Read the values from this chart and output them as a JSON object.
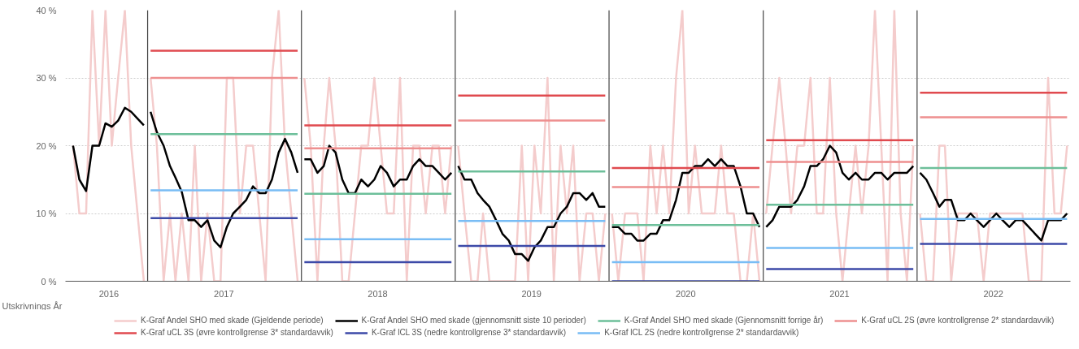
{
  "chart_data": {
    "type": "line",
    "xlabel": "Utskrivnings År",
    "xlim": [
      "2016-06-20",
      "2022-12-31"
    ],
    "ylim": [
      0,
      40
    ],
    "xticks": [
      {
        "value": "2016-10-01",
        "label": "2016"
      },
      {
        "value": "2017-07-01",
        "label": "2017"
      },
      {
        "value": "2018-07-01",
        "label": "2018"
      },
      {
        "value": "2019-07-01",
        "label": "2019"
      },
      {
        "value": "2020-07-01",
        "label": "2020"
      },
      {
        "value": "2021-07-01",
        "label": "2021"
      },
      {
        "value": "2022-07-01",
        "label": "2022"
      }
    ],
    "yticks": [
      {
        "value": 0,
        "label": "0 %"
      },
      {
        "value": 10,
        "label": "10 %"
      },
      {
        "value": 20,
        "label": "20 %"
      },
      {
        "value": 30,
        "label": "30 %"
      },
      {
        "value": 40,
        "label": "40 %"
      }
    ],
    "grid": "y",
    "legend": "bottom",
    "line_style": "solid",
    "x": [
      "2016-07-08",
      "2016-07-23",
      "2016-08-08",
      "2016-08-23",
      "2016-09-08",
      "2016-09-23",
      "2016-10-08",
      "2016-10-23",
      "2016-11-08",
      "2016-11-23",
      "2016-12-08",
      "2016-12-23",
      "2017-01-01",
      "2017-01-08",
      "2017-01-23",
      "2017-02-08",
      "2017-02-23",
      "2017-03-08",
      "2017-03-23",
      "2017-04-08",
      "2017-04-23",
      "2017-05-08",
      "2017-05-23",
      "2017-06-08",
      "2017-06-23",
      "2017-07-08",
      "2017-07-23",
      "2017-08-08",
      "2017-08-23",
      "2017-09-08",
      "2017-09-23",
      "2017-10-08",
      "2017-10-23",
      "2017-11-08",
      "2017-11-23",
      "2017-12-08",
      "2017-12-23",
      "2018-01-01",
      "2018-01-08",
      "2018-01-23",
      "2018-02-08",
      "2018-02-23",
      "2018-03-08",
      "2018-03-23",
      "2018-04-08",
      "2018-04-23",
      "2018-05-08",
      "2018-05-23",
      "2018-06-08",
      "2018-06-23",
      "2018-07-08",
      "2018-07-23",
      "2018-08-08",
      "2018-08-23",
      "2018-09-08",
      "2018-09-23",
      "2018-10-08",
      "2018-10-23",
      "2018-11-08",
      "2018-11-23",
      "2018-12-08",
      "2018-12-23",
      "2019-01-01",
      "2019-01-08",
      "2019-01-23",
      "2019-02-08",
      "2019-02-23",
      "2019-03-08",
      "2019-03-23",
      "2019-04-08",
      "2019-04-23",
      "2019-05-08",
      "2019-05-23",
      "2019-06-08",
      "2019-06-23",
      "2019-07-08",
      "2019-07-23",
      "2019-08-08",
      "2019-08-23",
      "2019-09-08",
      "2019-09-23",
      "2019-10-08",
      "2019-10-23",
      "2019-11-08",
      "2019-11-23",
      "2019-12-08",
      "2019-12-23",
      "2020-01-01",
      "2020-01-08",
      "2020-01-23",
      "2020-02-08",
      "2020-02-23",
      "2020-03-08",
      "2020-03-23",
      "2020-04-08",
      "2020-04-23",
      "2020-05-08",
      "2020-05-23",
      "2020-06-08",
      "2020-06-23",
      "2020-07-08",
      "2020-07-23",
      "2020-08-08",
      "2020-08-23",
      "2020-09-08",
      "2020-09-23",
      "2020-10-08",
      "2020-10-23",
      "2020-11-08",
      "2020-11-23",
      "2020-12-08",
      "2020-12-23",
      "2021-01-01",
      "2021-01-08",
      "2021-01-23",
      "2021-02-08",
      "2021-02-23",
      "2021-03-08",
      "2021-03-23",
      "2021-04-08",
      "2021-04-23",
      "2021-05-08",
      "2021-05-23",
      "2021-06-08",
      "2021-06-23",
      "2021-07-08",
      "2021-07-23",
      "2021-08-08",
      "2021-08-23",
      "2021-09-08",
      "2021-09-23",
      "2021-10-08",
      "2021-10-23",
      "2021-11-08",
      "2021-11-23",
      "2021-12-08",
      "2021-12-23",
      "2022-01-01",
      "2022-01-08",
      "2022-01-23",
      "2022-02-08",
      "2022-02-23",
      "2022-03-08",
      "2022-03-23",
      "2022-04-08",
      "2022-04-23",
      "2022-05-08",
      "2022-05-23",
      "2022-06-08",
      "2022-06-23",
      "2022-07-08",
      "2022-07-23",
      "2022-08-08",
      "2022-08-23",
      "2022-09-08",
      "2022-09-23",
      "2022-10-08",
      "2022-10-23",
      "2022-11-08",
      "2022-11-23",
      "2022-12-08",
      "2022-12-23"
    ],
    "series": [
      {
        "name": "K-Graf Andel SHO med skade (Gjeldende periode)",
        "color": "#f4cccc",
        "values": [
          20,
          10,
          10,
          40,
          20,
          40,
          20,
          30,
          40,
          20,
          10,
          0,
          null,
          30,
          20,
          0,
          10,
          0,
          10,
          0,
          20,
          0,
          10,
          0,
          0,
          30,
          30,
          10,
          20,
          20,
          10,
          0,
          30,
          40,
          20,
          10,
          0,
          null,
          30,
          20,
          0,
          20,
          30,
          20,
          0,
          0,
          10,
          20,
          20,
          30,
          20,
          10,
          10,
          30,
          0,
          20,
          20,
          10,
          20,
          20,
          10,
          20,
          null,
          20,
          10,
          0,
          0,
          10,
          0,
          0,
          0,
          0,
          0,
          20,
          0,
          20,
          10,
          30,
          0,
          20,
          10,
          20,
          0,
          10,
          10,
          0,
          10,
          null,
          10,
          0,
          10,
          10,
          10,
          0,
          20,
          10,
          20,
          10,
          30,
          40,
          10,
          20,
          10,
          10,
          10,
          20,
          10,
          10,
          0,
          0,
          10,
          0,
          null,
          10,
          20,
          30,
          20,
          10,
          20,
          20,
          30,
          10,
          10,
          30,
          10,
          0,
          10,
          20,
          10,
          20,
          40,
          20,
          0,
          40,
          10,
          0,
          20,
          null,
          10,
          0,
          0,
          20,
          20,
          0,
          10,
          10,
          10,
          10,
          0,
          10,
          10,
          10,
          10,
          10,
          10,
          0,
          0,
          0,
          30,
          10,
          10,
          20
        ]
      },
      {
        "name": "K-Graf Andel SHO med skade (gjennomsnitt siste 10 perioder)",
        "color": "#000000",
        "values": [
          20,
          15,
          13.3,
          20,
          20,
          23.3,
          22.8,
          23.7,
          25.6,
          25,
          24,
          23,
          null,
          25,
          22,
          20,
          17,
          15.3,
          13.2,
          9,
          9,
          8,
          9,
          6,
          5,
          8,
          10,
          11,
          12,
          14,
          13,
          13,
          15,
          19,
          21,
          19,
          16,
          null,
          18,
          18,
          16,
          17,
          20,
          19,
          15,
          13,
          13,
          15,
          14,
          15,
          17,
          16,
          14,
          15,
          15,
          17,
          18,
          17,
          17,
          16,
          15,
          16,
          null,
          17,
          15,
          15,
          13,
          12,
          11,
          9,
          7,
          6,
          4,
          4,
          3,
          5,
          6,
          8,
          8,
          10,
          11,
          13,
          13,
          12,
          13,
          11,
          11,
          null,
          8,
          8,
          7,
          7,
          6,
          6,
          7,
          7,
          9,
          9,
          12,
          16,
          16,
          17,
          17,
          18,
          17,
          18,
          17,
          17,
          14,
          10,
          10,
          8,
          null,
          8,
          9,
          11,
          11,
          11,
          12,
          14,
          17,
          17,
          18,
          20,
          19,
          16,
          15,
          16,
          15,
          15,
          16,
          16,
          15,
          16,
          16,
          16,
          17,
          null,
          16,
          15,
          13,
          11,
          12,
          12,
          9,
          9,
          10,
          9,
          8,
          9,
          10,
          9,
          8,
          9,
          9,
          8,
          7,
          6,
          9,
          9,
          9,
          10
        ]
      },
      {
        "name": "K-Graf Andel SHO med skade (Gjennomsnitt forrige år)",
        "color": "#6dbf9a",
        "x": [
          "2017-01-08",
          "2017-12-23",
          "2018-01-01",
          "2018-01-08",
          "2018-12-23",
          "2019-01-01",
          "2019-01-08",
          "2019-12-23",
          "2020-01-01",
          "2020-01-08",
          "2020-12-23",
          "2021-01-01",
          "2021-01-08",
          "2021-12-23",
          "2022-01-01",
          "2022-01-08",
          "2022-12-23"
        ],
        "values": [
          21.7,
          21.7,
          null,
          12.9,
          12.9,
          null,
          16.2,
          16.2,
          null,
          8.3,
          8.3,
          null,
          11.3,
          11.3,
          null,
          16.7,
          16.7
        ]
      },
      {
        "name": "K-Graf uCL 2S (øvre kontrollgrense 2* standardavvik)",
        "color": "#ee9090",
        "x": [
          "2017-01-08",
          "2017-12-23",
          "2018-01-01",
          "2018-01-08",
          "2018-12-23",
          "2019-01-01",
          "2019-01-08",
          "2019-12-23",
          "2020-01-01",
          "2020-01-08",
          "2020-12-23",
          "2021-01-01",
          "2021-01-08",
          "2021-12-23",
          "2022-01-01",
          "2022-01-08",
          "2022-12-23"
        ],
        "values": [
          30,
          30,
          null,
          19.6,
          19.6,
          null,
          23.7,
          23.7,
          null,
          13.9,
          13.9,
          null,
          17.6,
          17.6,
          null,
          24.2,
          24.2
        ]
      },
      {
        "name": "K-Graf uCL 3S (øvre kontrollgrense 3* standardavvik)",
        "color": "#e04a4f",
        "x": [
          "2017-01-08",
          "2017-12-23",
          "2018-01-01",
          "2018-01-08",
          "2018-12-23",
          "2019-01-01",
          "2019-01-08",
          "2019-12-23",
          "2020-01-01",
          "2020-01-08",
          "2020-12-23",
          "2021-01-01",
          "2021-01-08",
          "2021-12-23",
          "2022-01-01",
          "2022-01-08",
          "2022-12-23"
        ],
        "values": [
          34,
          34,
          null,
          23,
          23,
          null,
          27.4,
          27.4,
          null,
          16.7,
          16.7,
          null,
          20.8,
          20.8,
          null,
          27.8,
          27.8
        ]
      },
      {
        "name": "K-Graf lCL 3S (nedre kontrollgrense 3* standardavvik)",
        "color": "#3d4aa8",
        "x": [
          "2017-01-08",
          "2017-12-23",
          "2018-01-01",
          "2018-01-08",
          "2018-12-23",
          "2019-01-01",
          "2019-01-08",
          "2019-12-23",
          "2020-01-01",
          "2020-01-08",
          "2020-12-23",
          "2021-01-01",
          "2021-01-08",
          "2021-12-23",
          "2022-01-01",
          "2022-01-08",
          "2022-12-23"
        ],
        "values": [
          9.3,
          9.3,
          null,
          2.8,
          2.8,
          null,
          5.2,
          5.2,
          null,
          0,
          0,
          null,
          1.8,
          1.8,
          null,
          5.5,
          5.5
        ]
      },
      {
        "name": "K-Graf lCL 2S (nedre kontrollgrense 2* standardavvik)",
        "color": "#79bdf5",
        "x": [
          "2017-01-08",
          "2017-12-23",
          "2018-01-01",
          "2018-01-08",
          "2018-12-23",
          "2019-01-01",
          "2019-01-08",
          "2019-12-23",
          "2020-01-01",
          "2020-01-08",
          "2020-12-23",
          "2021-01-01",
          "2021-01-08",
          "2021-12-23",
          "2022-01-01",
          "2022-01-08",
          "2022-12-23"
        ],
        "values": [
          13.4,
          13.4,
          null,
          6.2,
          6.2,
          null,
          8.9,
          8.9,
          null,
          2.8,
          2.8,
          null,
          4.9,
          4.9,
          null,
          9.2,
          9.2
        ]
      }
    ],
    "ref_lines": [
      {
        "axis": "x",
        "value": "2017-01-01",
        "color": "#444444"
      },
      {
        "axis": "x",
        "value": "2018-01-01",
        "color": "#444444"
      },
      {
        "axis": "x",
        "value": "2019-01-01",
        "color": "#444444"
      },
      {
        "axis": "x",
        "value": "2020-01-01",
        "color": "#444444"
      },
      {
        "axis": "x",
        "value": "2021-01-01",
        "color": "#444444"
      },
      {
        "axis": "x",
        "value": "2022-01-01",
        "color": "#444444"
      }
    ]
  }
}
